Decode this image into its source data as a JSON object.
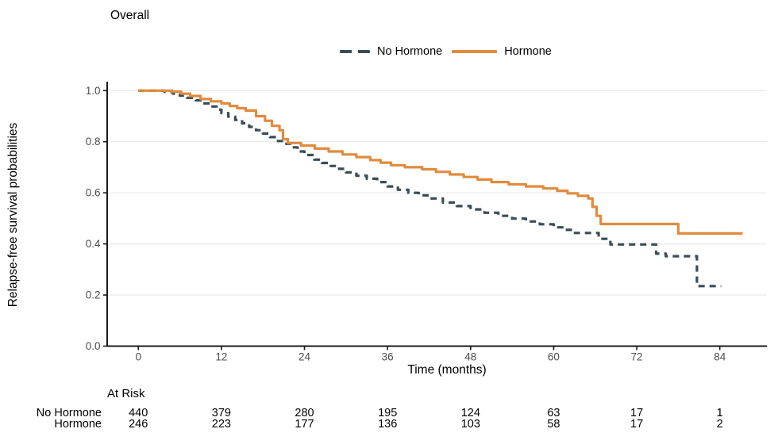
{
  "title": "Overall",
  "colors": {
    "hormone": "#E08B3E",
    "no_hormone": "#3A4E57",
    "grid": "#ECECEC",
    "axis": "#000000",
    "tick": "#1A1A1A",
    "tick_label": "#4D4D4D"
  },
  "legend": {
    "items": [
      {
        "label": "No Hormone",
        "style": "dashed"
      },
      {
        "label": "Hormone",
        "style": "solid"
      }
    ]
  },
  "chart_data": {
    "type": "line",
    "subtype": "kaplan-meier-step",
    "title": "Overall",
    "xlabel": "Time (months)",
    "ylabel": "Relapse-free survival probabilities",
    "xticks": [
      0,
      12,
      24,
      36,
      48,
      60,
      72,
      84
    ],
    "yticks": [
      0.0,
      0.2,
      0.4,
      0.6,
      0.8,
      1.0
    ],
    "xtick_format": "int",
    "ytick_format": "1dp",
    "xlim": [
      -4.5,
      90.8
    ],
    "ylim": [
      0,
      1.035
    ],
    "grid": "horizontal-major-only",
    "legend_position": "top",
    "series": [
      {
        "name": "No Hormone",
        "color": "#3A4E57",
        "dash": true,
        "points": [
          [
            0,
            1.0
          ],
          [
            3.8,
            0.995
          ],
          [
            5,
            0.988
          ],
          [
            6,
            0.98
          ],
          [
            7,
            0.972
          ],
          [
            8.3,
            0.962
          ],
          [
            9.3,
            0.95
          ],
          [
            10.5,
            0.938
          ],
          [
            11.3,
            0.925
          ],
          [
            12,
            0.912
          ],
          [
            13,
            0.898
          ],
          [
            14,
            0.885
          ],
          [
            15,
            0.872
          ],
          [
            16,
            0.858
          ],
          [
            17,
            0.845
          ],
          [
            18,
            0.832
          ],
          [
            19,
            0.818
          ],
          [
            20,
            0.803
          ],
          [
            21,
            0.792
          ],
          [
            22,
            0.778
          ],
          [
            23,
            0.762
          ],
          [
            24,
            0.748
          ],
          [
            25.4,
            0.73
          ],
          [
            26.5,
            0.717
          ],
          [
            27.5,
            0.705
          ],
          [
            28.7,
            0.694
          ],
          [
            30,
            0.68
          ],
          [
            31.5,
            0.667
          ],
          [
            33,
            0.655
          ],
          [
            34.5,
            0.642
          ],
          [
            36,
            0.625
          ],
          [
            37.5,
            0.612
          ],
          [
            39,
            0.6
          ],
          [
            40.5,
            0.59
          ],
          [
            42,
            0.578
          ],
          [
            44,
            0.562
          ],
          [
            46,
            0.548
          ],
          [
            48,
            0.535
          ],
          [
            50,
            0.522
          ],
          [
            52,
            0.51
          ],
          [
            54,
            0.499
          ],
          [
            56,
            0.488
          ],
          [
            58,
            0.477
          ],
          [
            60,
            0.465
          ],
          [
            61.5,
            0.455
          ],
          [
            62.8,
            0.443
          ],
          [
            66.5,
            0.42
          ],
          [
            68.2,
            0.398
          ],
          [
            74.8,
            0.362
          ],
          [
            76.2,
            0.352
          ],
          [
            80.7,
            0.235
          ],
          [
            84.2,
            0.235
          ]
        ]
      },
      {
        "name": "Hormone",
        "color": "#E08B3E",
        "dash": false,
        "points": [
          [
            0,
            1.0
          ],
          [
            4.9,
            0.996
          ],
          [
            6.2,
            0.988
          ],
          [
            7.5,
            0.979
          ],
          [
            9,
            0.967
          ],
          [
            10.5,
            0.958
          ],
          [
            12,
            0.95
          ],
          [
            13.2,
            0.94
          ],
          [
            14.3,
            0.931
          ],
          [
            15.5,
            0.922
          ],
          [
            17,
            0.9
          ],
          [
            18.3,
            0.882
          ],
          [
            19.3,
            0.862
          ],
          [
            20.4,
            0.845
          ],
          [
            20.9,
            0.81
          ],
          [
            21.6,
            0.795
          ],
          [
            23.5,
            0.785
          ],
          [
            25.5,
            0.773
          ],
          [
            27.5,
            0.762
          ],
          [
            29.5,
            0.75
          ],
          [
            31.5,
            0.74
          ],
          [
            33.5,
            0.728
          ],
          [
            35,
            0.718
          ],
          [
            36.5,
            0.708
          ],
          [
            38.5,
            0.7
          ],
          [
            41,
            0.692
          ],
          [
            43,
            0.682
          ],
          [
            45,
            0.672
          ],
          [
            47,
            0.662
          ],
          [
            49,
            0.652
          ],
          [
            51,
            0.642
          ],
          [
            53.5,
            0.633
          ],
          [
            56,
            0.625
          ],
          [
            58.5,
            0.617
          ],
          [
            60.5,
            0.608
          ],
          [
            62,
            0.598
          ],
          [
            63.5,
            0.588
          ],
          [
            65,
            0.578
          ],
          [
            65.6,
            0.545
          ],
          [
            66.2,
            0.51
          ],
          [
            66.8,
            0.478
          ],
          [
            78,
            0.441
          ],
          [
            87.3,
            0.441
          ]
        ]
      }
    ]
  },
  "risk_table": {
    "header": "At Risk",
    "times": [
      0,
      12,
      24,
      36,
      48,
      60,
      72,
      84
    ],
    "rows": [
      {
        "label": "No Hormone",
        "values": [
          440,
          379,
          280,
          195,
          124,
          63,
          17,
          1
        ]
      },
      {
        "label": "Hormone",
        "values": [
          246,
          223,
          177,
          136,
          103,
          58,
          17,
          2
        ]
      }
    ]
  }
}
